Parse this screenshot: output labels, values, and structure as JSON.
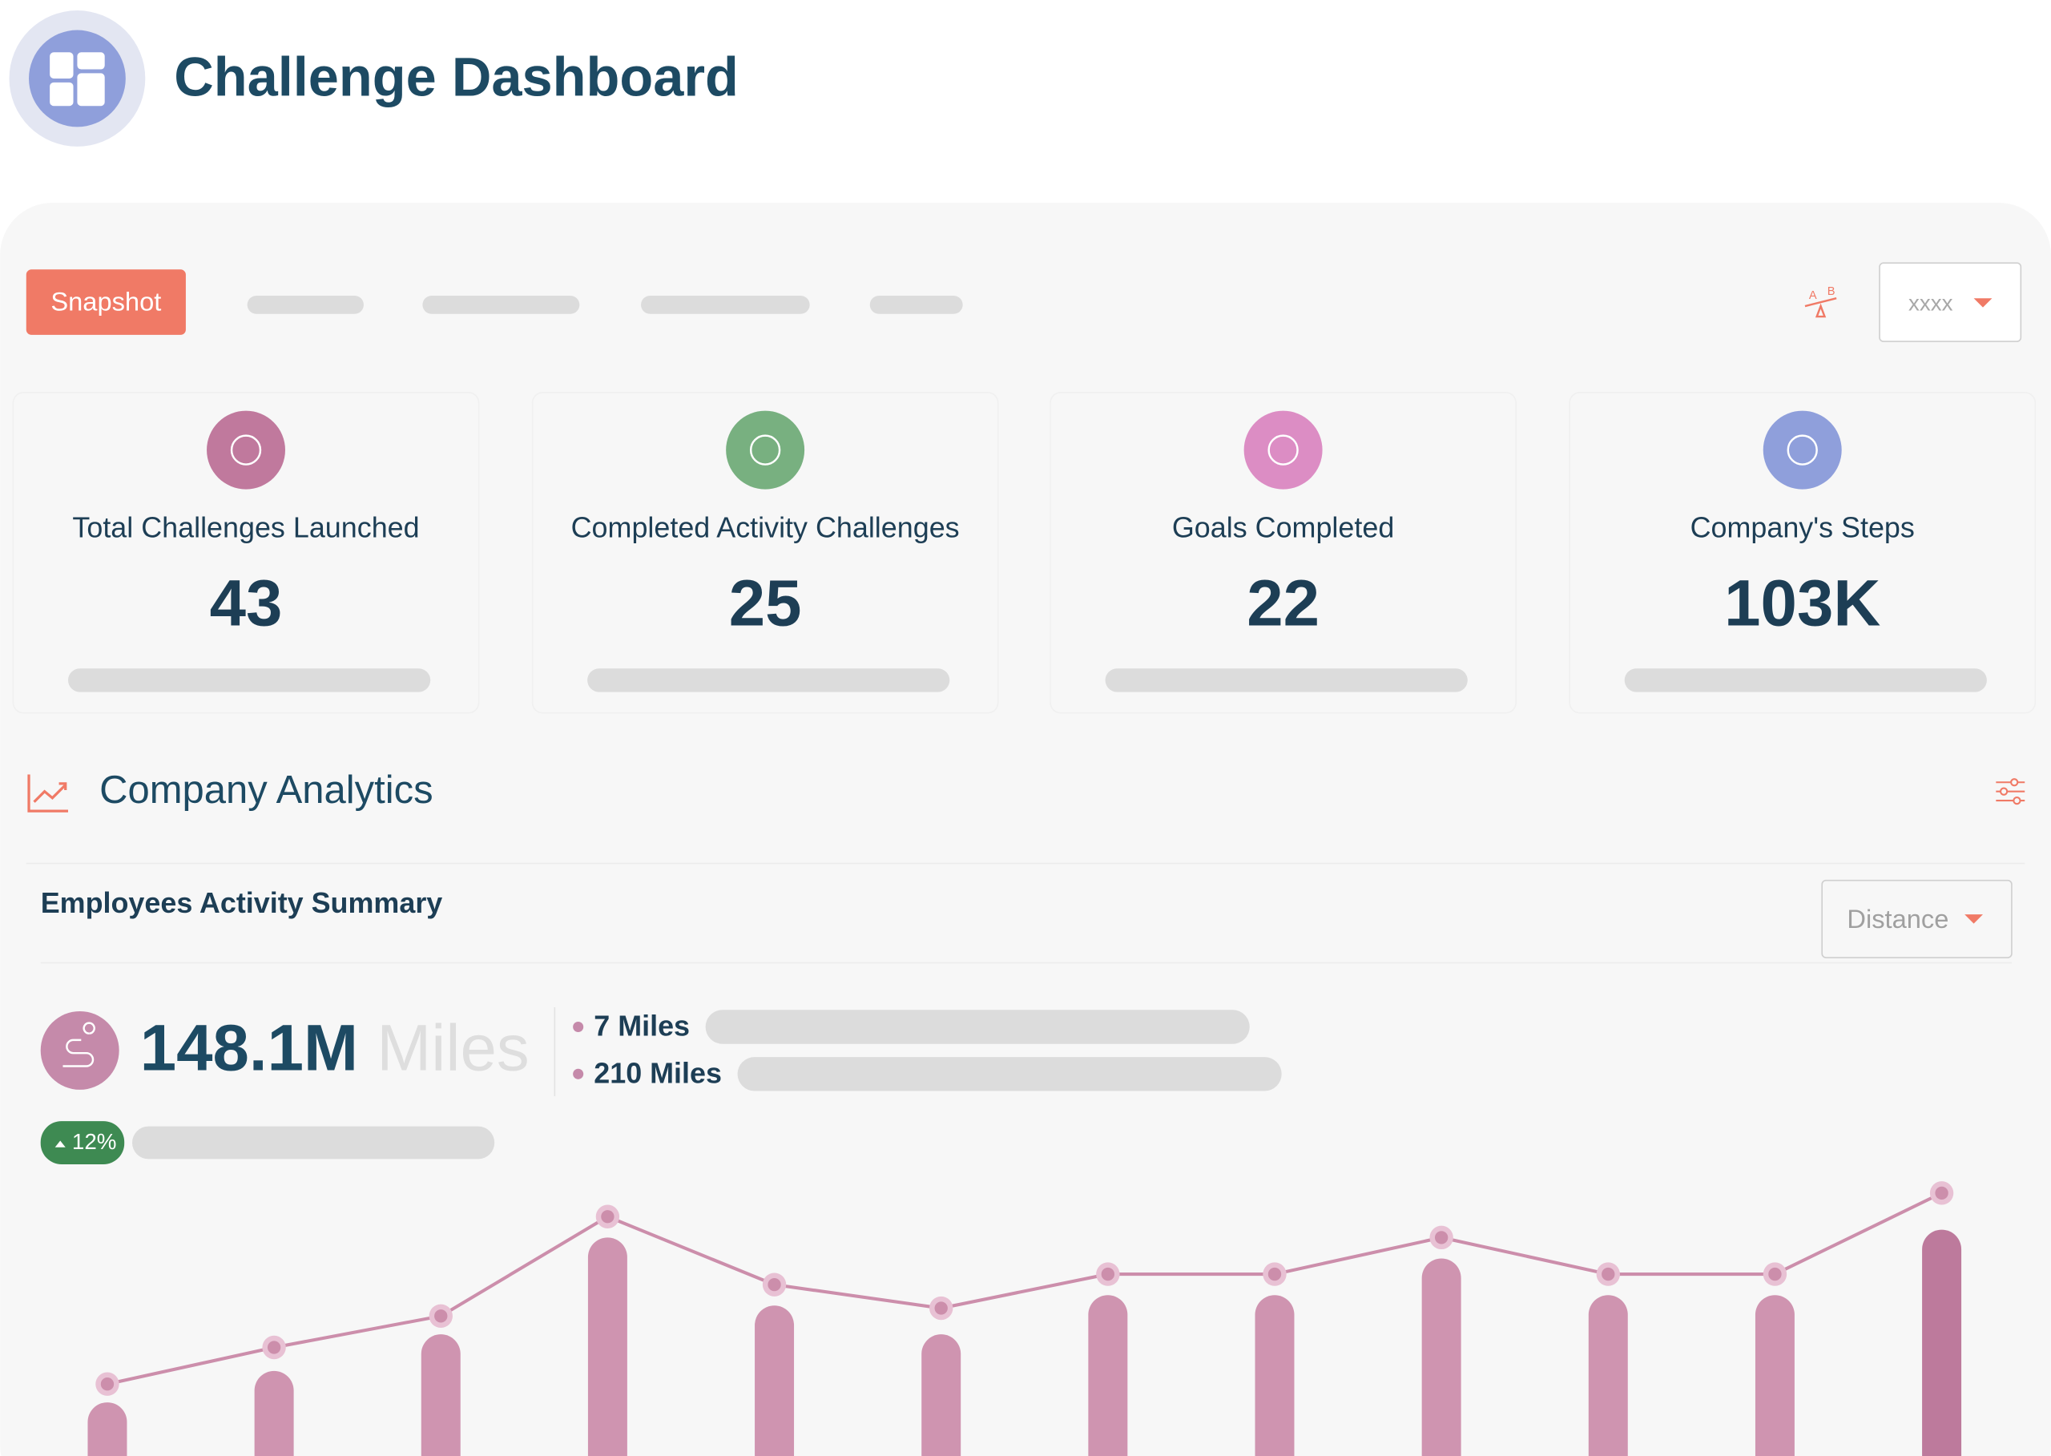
{
  "header": {
    "title": "Challenge Dashboard"
  },
  "tabs": {
    "active": "Snapshot"
  },
  "period_dropdown": "xxxx",
  "cards": [
    {
      "label": "Total Challenges Launched",
      "value": "43",
      "color": "#c0799d"
    },
    {
      "label": "Completed Activity Challenges",
      "value": "25",
      "color": "#78b080"
    },
    {
      "label": "Goals Completed",
      "value": "22",
      "color": "#dc8dc4"
    },
    {
      "label": "Company's Steps",
      "value": "103K",
      "color": "#8f9fdb"
    }
  ],
  "analytics": {
    "title": "Company Analytics",
    "subtitle": "Employees Activity Summary",
    "metric_dropdown": "Distance",
    "total": "148.1M",
    "unit": "Miles",
    "legend": [
      "7 Miles",
      "210 Miles"
    ],
    "change": "12%"
  },
  "chart_data": {
    "type": "bar",
    "ylim": [
      0,
      100
    ],
    "series": [
      {
        "type": "bar",
        "colors": [
          "#cf94b0",
          "#cf94b0",
          "#cf94b0",
          "#cf94b0",
          "#cf94b0",
          "#cf94b0",
          "#cf94b0",
          "#cf94b0",
          "#cf94b0",
          "#cf94b0",
          "#cf94b0",
          "#bd7a9c"
        ],
        "values": [
          19,
          31,
          45,
          82,
          56,
          45,
          60,
          60,
          74,
          60,
          60,
          85
        ]
      },
      {
        "type": "line",
        "color": "#cc8eab",
        "marker_color": "#e8c1d4",
        "values": [
          26,
          40,
          52,
          90,
          64,
          55,
          68,
          68,
          82,
          68,
          68,
          99
        ]
      }
    ]
  }
}
